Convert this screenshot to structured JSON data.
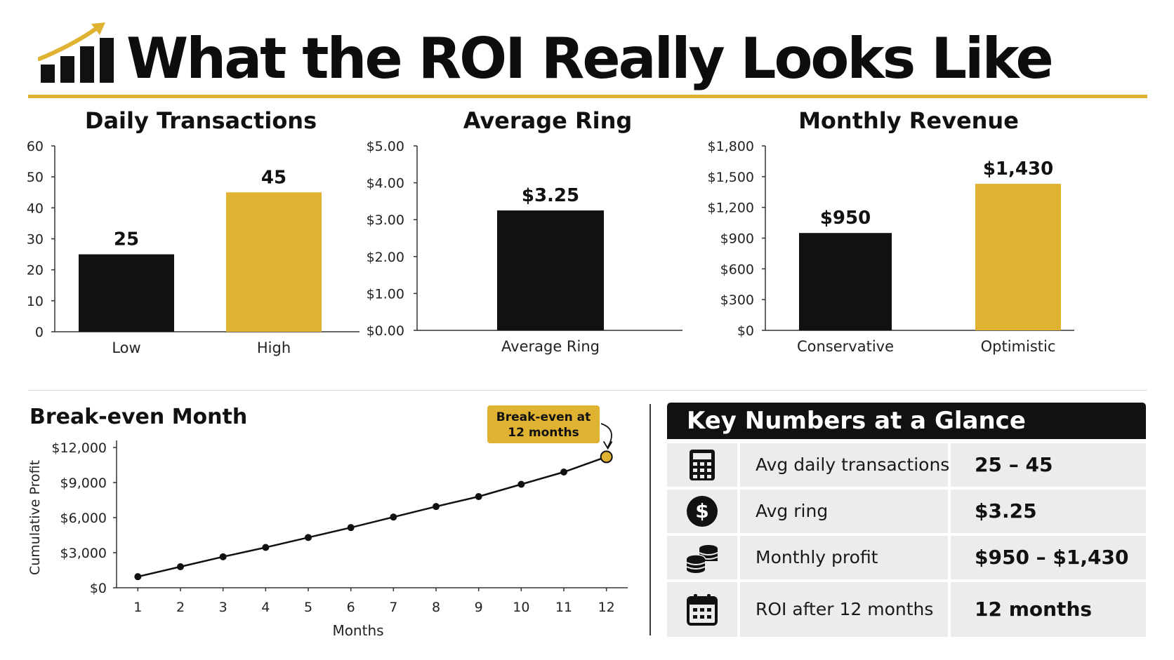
{
  "page_title": "What the ROI Really Looks Like",
  "colors": {
    "accent": "#e0b232",
    "dark": "#111111",
    "axis": "#333333",
    "table_bg": "#ececec"
  },
  "icons": {
    "title": "bar-chart-growth-icon",
    "rows": [
      "calculator-icon",
      "dollar-coin-icon",
      "coin-stack-icon",
      "calendar-icon"
    ]
  },
  "chart_data": [
    {
      "type": "bar",
      "title": "Daily Transactions",
      "categories": [
        "Low",
        "High"
      ],
      "values": [
        25,
        45
      ],
      "value_labels": [
        "25",
        "45"
      ],
      "bar_colors": [
        "#111111",
        "#e0b232"
      ],
      "ylim": [
        0,
        60
      ],
      "yticks": [
        0,
        10,
        20,
        30,
        40,
        50,
        60
      ],
      "ytick_labels": [
        "0",
        "10",
        "20",
        "30",
        "40",
        "50",
        "60"
      ],
      "xlabel": "",
      "ylabel": "",
      "grid": false
    },
    {
      "type": "bar",
      "title": "Average Ring",
      "categories": [
        "Average Ring"
      ],
      "values": [
        3.25
      ],
      "value_labels": [
        "$3.25"
      ],
      "bar_colors": [
        "#111111"
      ],
      "ylim": [
        0,
        5
      ],
      "yticks": [
        0,
        1,
        2,
        3,
        4,
        5
      ],
      "ytick_labels": [
        "$0.00",
        "$1.00",
        "$2.00",
        "$3.00",
        "$4.00",
        "$5.00"
      ],
      "xlabel": "",
      "ylabel": "",
      "grid": false
    },
    {
      "type": "bar",
      "title": "Monthly Revenue",
      "categories": [
        "Conservative",
        "Optimistic"
      ],
      "values": [
        950,
        1430
      ],
      "value_labels": [
        "$950",
        "$1,430"
      ],
      "bar_colors": [
        "#111111",
        "#e0b232"
      ],
      "ylim": [
        0,
        1800
      ],
      "yticks": [
        0,
        300,
        600,
        900,
        1200,
        1500,
        1800
      ],
      "ytick_labels": [
        "$0",
        "$300",
        "$600",
        "$900",
        "$1,200",
        "$1,500",
        "$1,800"
      ],
      "xlabel": "",
      "ylabel": "",
      "grid": false
    },
    {
      "type": "line",
      "title": "Break-even Month",
      "x": [
        1,
        2,
        3,
        4,
        5,
        6,
        7,
        8,
        9,
        10,
        11,
        12
      ],
      "series": [
        {
          "values": [
            950,
            1800,
            2650,
            3450,
            4300,
            5150,
            6050,
            6950,
            7800,
            8850,
            9900,
            11200
          ]
        }
      ],
      "xlim": [
        0.5,
        12.5
      ],
      "ylim": [
        0,
        12000
      ],
      "yticks": [
        0,
        3000,
        6000,
        9000,
        12000
      ],
      "ytick_labels": [
        "$0",
        "$3,000",
        "$6,000",
        "$9,000",
        "$12,000"
      ],
      "xlabel": "Months",
      "ylabel": "Cumulative Profit",
      "grid": false,
      "annotation": {
        "lines": [
          "Break-even at",
          "12 months"
        ],
        "x": 12
      }
    }
  ],
  "key_numbers": {
    "title": "Key Numbers at a Glance",
    "rows": [
      {
        "label": "Avg daily transactions",
        "value": "25 – 45"
      },
      {
        "label": "Avg ring",
        "value": "$3.25"
      },
      {
        "label": "Monthly profit",
        "value": "$950 – $1,430"
      },
      {
        "label": "ROI after 12 months",
        "value": "12 months"
      }
    ]
  }
}
